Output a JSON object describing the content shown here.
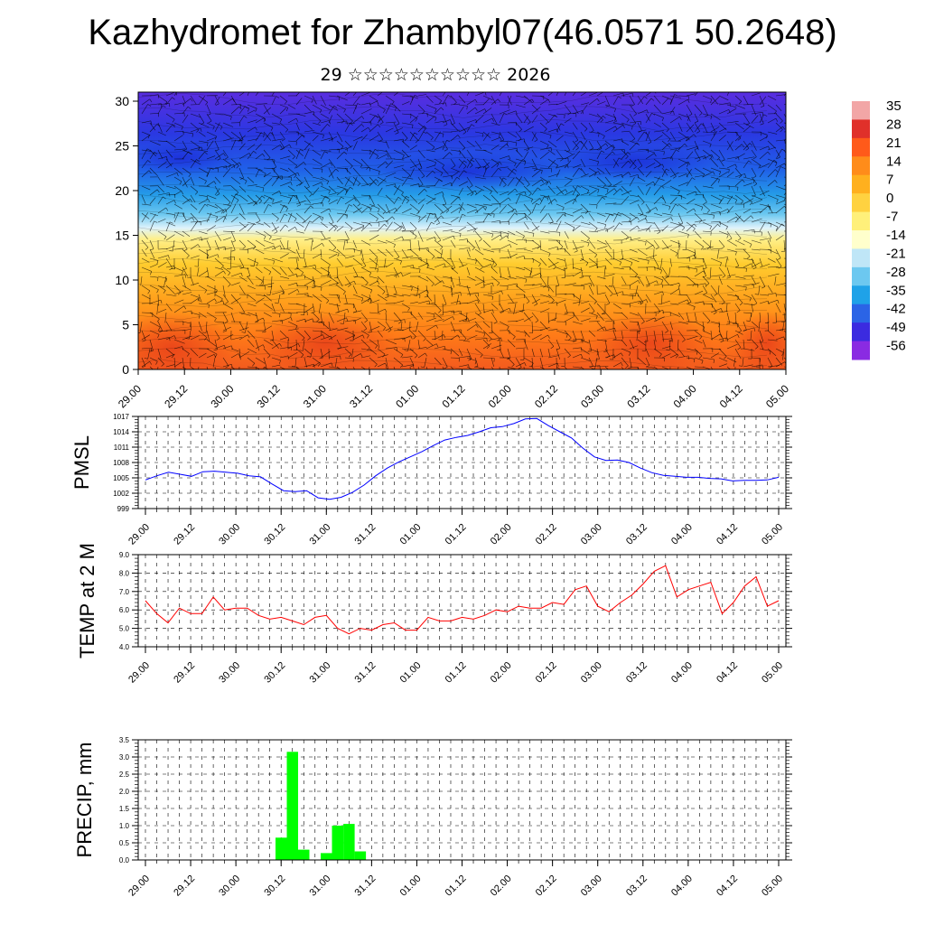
{
  "header": {
    "title": "Kazhydromet for Zhambyl07(46.0571 50.2648)",
    "subtitle": "29 ☆☆☆☆☆☆☆☆☆☆ 2026"
  },
  "colorbar": {
    "labels": [
      "35",
      "28",
      "21",
      "14",
      "7",
      "0",
      "-7",
      "-14",
      "-21",
      "-28",
      "-35",
      "-42",
      "-49",
      "-56"
    ],
    "colors": [
      "#f2a6a6",
      "#e0302a",
      "#ff5a1a",
      "#ff8c1a",
      "#ffb01e",
      "#ffd240",
      "#fff07a",
      "#ffffcc",
      "#bfe6f7",
      "#6cc8f0",
      "#1fa2e8",
      "#2b64e6",
      "#3b2be0",
      "#8a2be2"
    ]
  },
  "chart_data": [
    {
      "type": "heatmap",
      "name": "upper-air temperature and wind cross-section",
      "ylim": [
        0,
        30
      ],
      "yticks": [
        "0",
        "5",
        "10",
        "15",
        "20",
        "25",
        "30"
      ],
      "xticks": [
        "29.00",
        "29.12",
        "30.00",
        "30.12",
        "31.00",
        "31.12",
        "01.00",
        "01.12",
        "02.00",
        "02.12",
        "03.00",
        "03.12",
        "04.00",
        "04.12",
        "05.00"
      ]
    },
    {
      "type": "line",
      "name": "pmsl",
      "ylabel": "PMSL",
      "ylim": [
        999,
        1017
      ],
      "yticks": [
        "999",
        "1002",
        "1005",
        "1008",
        "1011",
        "1014",
        "1017"
      ],
      "xticks": [
        "29.00",
        "29.12",
        "30.00",
        "30.12",
        "31.00",
        "31.12",
        "01.00",
        "01.12",
        "02.00",
        "02.12",
        "03.00",
        "03.12",
        "04.00",
        "04.12",
        "05.00"
      ],
      "color": "#0000ff",
      "values": [
        1004.6,
        1005.4,
        1006.1,
        1005.7,
        1005.3,
        1006.2,
        1006.3,
        1006.1,
        1005.9,
        1005.4,
        1005.2,
        1003.8,
        1002.5,
        1002.3,
        1002.5,
        1001.1,
        1000.8,
        1001.2,
        1002.2,
        1003.6,
        1005.4,
        1006.9,
        1008.1,
        1009.1,
        1010.1,
        1011.3,
        1012.4,
        1012.9,
        1013.3,
        1014.0,
        1014.8,
        1015.0,
        1015.6,
        1016.5,
        1016.6,
        1015.2,
        1014.0,
        1012.8,
        1010.8,
        1009.1,
        1008.4,
        1008.5,
        1008.0,
        1006.9,
        1006.0,
        1005.5,
        1005.3,
        1005.1,
        1005.1,
        1004.9,
        1004.8,
        1004.4,
        1004.5,
        1004.5,
        1004.6,
        1005.1
      ]
    },
    {
      "type": "line",
      "name": "temp-2m",
      "ylabel": "TEMP at 2 M",
      "ylim": [
        4.0,
        9.0
      ],
      "yticks": [
        "4.0",
        "5.0",
        "6.0",
        "7.0",
        "8.0",
        "9.0"
      ],
      "xticks": [
        "29.00",
        "29.12",
        "30.00",
        "30.12",
        "31.00",
        "31.12",
        "01.00",
        "01.12",
        "02.00",
        "02.12",
        "03.00",
        "03.12",
        "04.00",
        "04.12",
        "05.00"
      ],
      "color": "#ff0000",
      "values": [
        6.5,
        5.8,
        5.3,
        6.1,
        5.8,
        5.8,
        6.7,
        6.0,
        6.1,
        6.1,
        5.7,
        5.5,
        5.6,
        5.4,
        5.2,
        5.6,
        5.7,
        5.0,
        4.7,
        5.0,
        4.9,
        5.2,
        5.3,
        4.9,
        4.9,
        5.6,
        5.4,
        5.4,
        5.6,
        5.5,
        5.7,
        6.0,
        5.9,
        6.2,
        6.1,
        6.1,
        6.4,
        6.3,
        7.1,
        7.3,
        6.2,
        5.9,
        6.4,
        6.8,
        7.4,
        8.1,
        8.4,
        6.7,
        7.1,
        7.3,
        7.5,
        5.8,
        6.4,
        7.3,
        7.8,
        6.2,
        6.5
      ]
    },
    {
      "type": "bar",
      "name": "precip",
      "ylabel": "PRECIP, mm",
      "ylim": [
        0,
        3.5
      ],
      "yticks": [
        "0.0",
        "0.5",
        "1.0",
        "1.5",
        "2.0",
        "2.5",
        "3.0",
        "3.5"
      ],
      "xticks": [
        "29.00",
        "29.12",
        "30.00",
        "30.12",
        "31.00",
        "31.12",
        "01.00",
        "01.12",
        "02.00",
        "02.12",
        "03.00",
        "03.12",
        "04.00",
        "04.12",
        "05.00"
      ],
      "color": "#00ff00",
      "values": [
        0,
        0,
        0,
        0,
        0,
        0,
        0,
        0,
        0,
        0,
        0,
        0,
        0.65,
        3.15,
        0.3,
        0,
        0.2,
        1.0,
        1.05,
        0.25,
        0,
        0,
        0,
        0,
        0,
        0,
        0,
        0,
        0,
        0,
        0,
        0,
        0,
        0,
        0,
        0,
        0,
        0,
        0,
        0,
        0,
        0,
        0,
        0,
        0,
        0,
        0,
        0,
        0,
        0,
        0,
        0,
        0,
        0,
        0,
        0,
        0
      ]
    }
  ]
}
